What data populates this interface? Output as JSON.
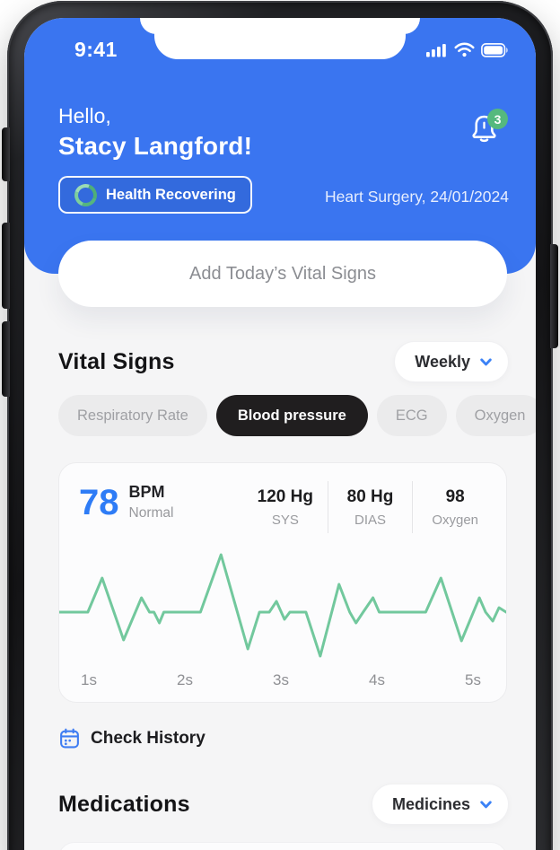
{
  "colors": {
    "header_blue": "#3a75f0",
    "accent_blue": "#2e7cf6",
    "chevron_blue": "#3b82f6",
    "badge_green": "#55b97e",
    "ecg_green": "#72c89d",
    "chip_active_bg": "#201e1f"
  },
  "status_bar": {
    "time": "9:41",
    "icons": [
      "cellular-signal",
      "wifi",
      "battery-full"
    ]
  },
  "header": {
    "greeting": "Hello,",
    "user_name": "Stacy Langford!",
    "status_badge": "Health Recovering",
    "event": "Heart Surgery, 24/01/2024",
    "notification_count": "3"
  },
  "add_vitals_button": "Add Today’s Vital Signs",
  "vital_signs": {
    "title": "Vital Signs",
    "period_selector": "Weekly",
    "filters": [
      {
        "label": "Respiratory Rate",
        "active": false
      },
      {
        "label": "Blood pressure",
        "active": true
      },
      {
        "label": "ECG",
        "active": false
      },
      {
        "label": "Oxygen",
        "active": false
      }
    ]
  },
  "vitals_card": {
    "bpm_value": "78",
    "bpm_unit": "BPM",
    "bpm_status": "Normal",
    "stats": [
      {
        "value": "120 Hg",
        "label": "SYS"
      },
      {
        "value": "80 Hg",
        "label": "DIAS"
      },
      {
        "value": "98",
        "label": "Oxygen"
      }
    ]
  },
  "chart_data": {
    "type": "line",
    "title": "ECG / Blood pressure waveform",
    "x_tick_labels": [
      "1s",
      "2s",
      "3s",
      "4s",
      "5s"
    ],
    "line_color": "#72c89d",
    "grid": false,
    "legend": "none",
    "series": [
      {
        "name": "ECG",
        "points": [
          [
            0,
            78
          ],
          [
            32,
            78
          ],
          [
            48,
            40
          ],
          [
            72,
            109
          ],
          [
            92,
            62
          ],
          [
            101,
            78
          ],
          [
            106,
            78
          ],
          [
            112,
            90
          ],
          [
            117,
            78
          ],
          [
            158,
            78
          ],
          [
            181,
            14
          ],
          [
            211,
            119
          ],
          [
            224,
            78
          ],
          [
            235,
            78
          ],
          [
            243,
            66
          ],
          [
            252,
            86
          ],
          [
            258,
            78
          ],
          [
            276,
            78
          ],
          [
            292,
            127
          ],
          [
            313,
            47
          ],
          [
            325,
            78
          ],
          [
            332,
            90
          ],
          [
            340,
            78
          ],
          [
            351,
            62
          ],
          [
            358,
            78
          ],
          [
            410,
            78
          ],
          [
            427,
            40
          ],
          [
            450,
            110
          ],
          [
            470,
            62
          ],
          [
            477,
            78
          ],
          [
            485,
            88
          ],
          [
            492,
            73
          ],
          [
            500,
            78
          ]
        ]
      }
    ]
  },
  "check_history_label": "Check History",
  "medications": {
    "title": "Medications",
    "selector": "Medicines"
  }
}
